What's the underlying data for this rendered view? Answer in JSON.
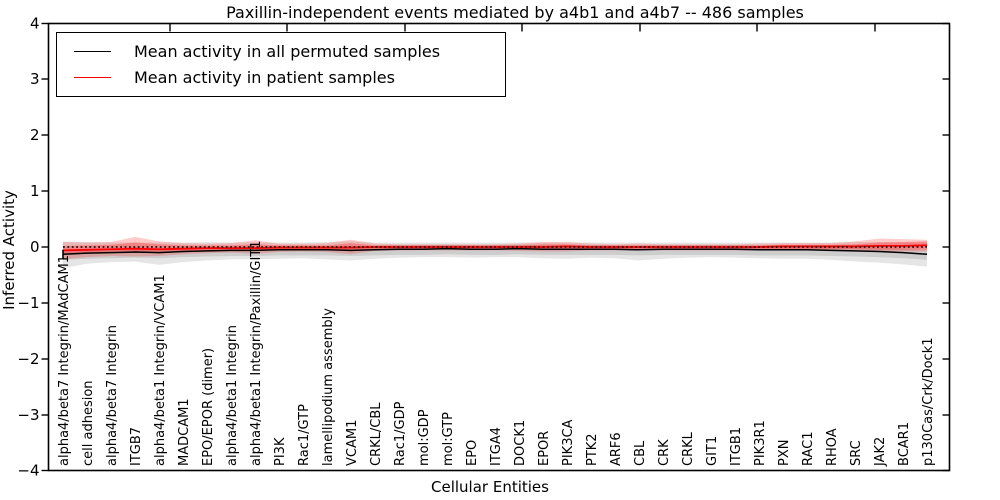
{
  "title": "Paxillin-independent events mediated by a4b1 and a4b7 -- 486 samples",
  "axes": {
    "x_label": "Cellular Entities",
    "y_label": "Inferred Activity",
    "y_ticks": [
      "4",
      "3",
      "2",
      "1",
      "0",
      "−1",
      "−2",
      "−3",
      "−4"
    ],
    "y_tick_values": [
      4,
      3,
      2,
      1,
      0,
      -1,
      -2,
      -3,
      -4
    ],
    "ylim": [
      -4,
      4
    ]
  },
  "legend": {
    "items": [
      {
        "label": "Mean activity in all permuted samples",
        "color": "#000000"
      },
      {
        "label": "Mean activity in patient samples",
        "color": "#ff0000"
      }
    ]
  },
  "chart_data": {
    "type": "line",
    "title": "Paxillin-independent events mediated by a4b1 and a4b7 -- 486 samples",
    "xlabel": "Cellular Entities",
    "ylabel": "Inferred Activity",
    "ylim": [
      -4,
      4
    ],
    "grid": false,
    "legend_position": "upper left",
    "zero_line_dotted": true,
    "categories": [
      "alpha4/beta7 Integrin/MAdCAM1",
      "cell adhesion",
      "alpha4/beta7 Integrin",
      "ITGB7",
      "alpha4/beta1 Integrin/VCAM1",
      "MADCAM1",
      "EPO/EPOR (dimer)",
      "alpha4/beta1 Integrin",
      "alpha4/beta1 Integrin/Paxillin/GIT1",
      "PI3K",
      "Rac1/GTP",
      "lamellipodium assembly",
      "VCAM1",
      "CRKL/CBL",
      "Rac1/GDP",
      "mol:GDP",
      "mol:GTP",
      "EPO",
      "ITGA4",
      "DOCK1",
      "EPOR",
      "PIK3CA",
      "PTK2",
      "ARF6",
      "CBL",
      "CRK",
      "CRKL",
      "GIT1",
      "ITGB1",
      "PIK3R1",
      "PXN",
      "RAC1",
      "RHOA",
      "SRC",
      "JAK2",
      "BCAR1",
      "p130Cas/Crk/Dock1"
    ],
    "series": [
      {
        "name": "Mean activity in all permuted samples",
        "color": "#000000",
        "values": [
          -0.13,
          -0.11,
          -0.1,
          -0.09,
          -0.1,
          -0.08,
          -0.07,
          -0.06,
          -0.06,
          -0.05,
          -0.05,
          -0.05,
          -0.06,
          -0.05,
          -0.04,
          -0.04,
          -0.03,
          -0.04,
          -0.04,
          -0.03,
          -0.04,
          -0.04,
          -0.04,
          -0.04,
          -0.05,
          -0.04,
          -0.04,
          -0.04,
          -0.04,
          -0.05,
          -0.05,
          -0.05,
          -0.06,
          -0.07,
          -0.08,
          -0.1,
          -0.13
        ],
        "band_inner": {
          "upper": [
            -0.06,
            -0.04,
            -0.03,
            -0.02,
            -0.03,
            -0.01,
            0.0,
            0.01,
            0.01,
            0.02,
            0.02,
            0.02,
            0.01,
            0.02,
            0.03,
            0.03,
            0.04,
            0.03,
            0.03,
            0.04,
            0.03,
            0.03,
            0.03,
            0.03,
            0.02,
            0.03,
            0.03,
            0.03,
            0.03,
            0.02,
            0.02,
            0.02,
            0.01,
            0.0,
            -0.01,
            -0.03,
            -0.06
          ],
          "lower": [
            -0.23,
            -0.21,
            -0.2,
            -0.19,
            -0.2,
            -0.18,
            -0.17,
            -0.16,
            -0.16,
            -0.15,
            -0.15,
            -0.15,
            -0.16,
            -0.15,
            -0.14,
            -0.14,
            -0.13,
            -0.14,
            -0.14,
            -0.13,
            -0.14,
            -0.14,
            -0.14,
            -0.14,
            -0.15,
            -0.14,
            -0.14,
            -0.14,
            -0.14,
            -0.15,
            -0.15,
            -0.15,
            -0.16,
            -0.17,
            -0.18,
            -0.2,
            -0.23
          ]
        },
        "band_outer": {
          "upper": [
            0.1,
            0.09,
            0.08,
            0.08,
            0.08,
            0.08,
            0.09,
            0.08,
            0.08,
            0.08,
            0.08,
            0.09,
            0.1,
            0.08,
            0.08,
            0.08,
            0.08,
            0.08,
            0.08,
            0.08,
            0.08,
            0.08,
            0.08,
            0.08,
            0.08,
            0.08,
            0.08,
            0.08,
            0.08,
            0.08,
            0.08,
            0.08,
            0.08,
            0.09,
            0.09,
            0.08,
            0.08
          ],
          "lower": [
            -0.38,
            -0.3,
            -0.27,
            -0.26,
            -0.32,
            -0.27,
            -0.24,
            -0.22,
            -0.22,
            -0.21,
            -0.2,
            -0.22,
            -0.24,
            -0.21,
            -0.19,
            -0.18,
            -0.18,
            -0.19,
            -0.18,
            -0.18,
            -0.2,
            -0.21,
            -0.19,
            -0.2,
            -0.24,
            -0.21,
            -0.19,
            -0.18,
            -0.19,
            -0.2,
            -0.21,
            -0.21,
            -0.23,
            -0.26,
            -0.28,
            -0.31,
            -0.35
          ]
        }
      },
      {
        "name": "Mean activity in patient samples",
        "color": "#ff0000",
        "values": [
          -0.06,
          -0.05,
          -0.04,
          -0.03,
          -0.04,
          -0.03,
          -0.02,
          -0.02,
          -0.02,
          -0.01,
          -0.01,
          -0.01,
          -0.01,
          0.0,
          0.0,
          0.0,
          0.0,
          0.0,
          0.0,
          0.0,
          0.0,
          0.01,
          0.0,
          0.0,
          0.0,
          0.0,
          0.0,
          0.0,
          0.0,
          0.0,
          0.01,
          0.01,
          0.01,
          0.01,
          0.02,
          0.02,
          0.03
        ],
        "band_inner": {
          "upper": [
            0.02,
            0.03,
            0.04,
            0.08,
            0.05,
            0.03,
            0.03,
            0.03,
            0.05,
            0.03,
            0.03,
            0.03,
            0.07,
            0.03,
            0.03,
            0.03,
            0.03,
            0.03,
            0.03,
            0.03,
            0.05,
            0.05,
            0.03,
            0.03,
            0.03,
            0.03,
            0.03,
            0.03,
            0.03,
            0.03,
            0.04,
            0.04,
            0.04,
            0.05,
            0.08,
            0.09,
            0.1
          ],
          "lower": [
            -0.14,
            -0.12,
            -0.1,
            -0.1,
            -0.1,
            -0.08,
            -0.07,
            -0.06,
            -0.07,
            -0.05,
            -0.05,
            -0.05,
            -0.08,
            -0.04,
            -0.04,
            -0.04,
            -0.04,
            -0.04,
            -0.04,
            -0.04,
            -0.05,
            -0.05,
            -0.04,
            -0.04,
            -0.04,
            -0.04,
            -0.04,
            -0.04,
            -0.04,
            -0.04,
            -0.04,
            -0.04,
            -0.04,
            -0.04,
            -0.05,
            -0.05,
            -0.05
          ]
        },
        "band_outer": {
          "upper": [
            0.09,
            0.08,
            0.09,
            0.18,
            0.1,
            0.07,
            0.06,
            0.07,
            0.12,
            0.06,
            0.06,
            0.07,
            0.13,
            0.06,
            0.05,
            0.05,
            0.05,
            0.05,
            0.05,
            0.06,
            0.09,
            0.09,
            0.06,
            0.05,
            0.06,
            0.05,
            0.05,
            0.05,
            0.05,
            0.06,
            0.07,
            0.07,
            0.07,
            0.1,
            0.15,
            0.14,
            0.13
          ],
          "lower": [
            -0.22,
            -0.18,
            -0.16,
            -0.17,
            -0.16,
            -0.13,
            -0.11,
            -0.1,
            -0.12,
            -0.09,
            -0.08,
            -0.09,
            -0.13,
            -0.07,
            -0.06,
            -0.06,
            -0.06,
            -0.06,
            -0.06,
            -0.07,
            -0.08,
            -0.08,
            -0.06,
            -0.06,
            -0.06,
            -0.06,
            -0.06,
            -0.06,
            -0.06,
            -0.06,
            -0.06,
            -0.06,
            -0.06,
            -0.07,
            -0.08,
            -0.08,
            -0.08
          ]
        }
      }
    ]
  }
}
